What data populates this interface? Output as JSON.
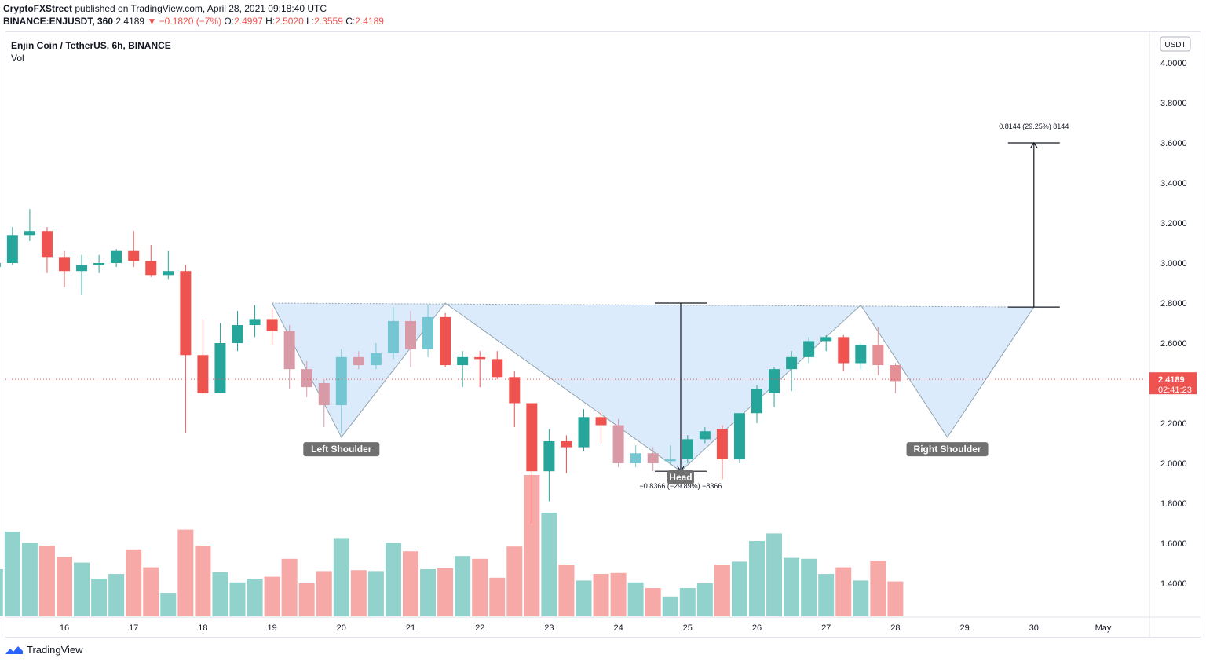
{
  "header": {
    "publisher": "CryptoFXStreet",
    "publisher_rest": " published on TradingView.com, April 28, 2021 09:18:40 UTC",
    "symbol": "BINANCE:ENJUSDT, 360",
    "last": "2.4189",
    "change": "−0.1820 (−7%)",
    "open_lbl": "O:",
    "open": "2.4997",
    "high_lbl": "H:",
    "high": "2.5020",
    "low_lbl": "L:",
    "low": "2.3559",
    "close_lbl": "C:",
    "close": "2.4189"
  },
  "legend": {
    "title": "Enjin Coin / TetherUS, 6h, BINANCE",
    "vol": "Vol"
  },
  "price_axis": {
    "unit": "USDT",
    "current_price": "2.4189",
    "countdown": "02:41:23"
  },
  "footer": {
    "brand": "TradingView"
  },
  "colors": {
    "up": "#26a69a",
    "down": "#ef5350",
    "pattern_fill": "#d6e8fb",
    "pattern_stroke": "#90a4ae"
  },
  "chart_data": {
    "type": "candlestick",
    "interval": "6h",
    "ylim": [
      1.2,
      4.07
    ],
    "y_ticks": [
      "4.0000",
      "3.8000",
      "3.6000",
      "3.4000",
      "3.2000",
      "3.0000",
      "2.8000",
      "2.6000",
      "2.4000",
      "2.2000",
      "2.0000",
      "1.8000",
      "1.6000",
      "1.4000"
    ],
    "x_ticks": [
      "16",
      "17",
      "18",
      "19",
      "20",
      "21",
      "22",
      "23",
      "24",
      "25",
      "26",
      "27",
      "28",
      "29",
      "30",
      "May"
    ],
    "x_tick_positions": [
      16,
      17,
      18,
      19,
      20,
      21,
      22,
      23,
      24,
      25,
      26,
      27,
      28,
      29,
      30,
      31
    ],
    "candles": [
      {
        "t": 15.0,
        "o": 2.98,
        "h": 3.04,
        "l": 2.92,
        "c": 3.0
      },
      {
        "t": 15.25,
        "o": 3.0,
        "h": 3.18,
        "l": 2.99,
        "c": 3.14
      },
      {
        "t": 15.5,
        "o": 3.14,
        "h": 3.27,
        "l": 3.11,
        "c": 3.16
      },
      {
        "t": 15.75,
        "o": 3.16,
        "h": 3.18,
        "l": 2.95,
        "c": 3.03
      },
      {
        "t": 16.0,
        "o": 3.03,
        "h": 3.06,
        "l": 2.88,
        "c": 2.96
      },
      {
        "t": 16.25,
        "o": 2.96,
        "h": 3.04,
        "l": 2.84,
        "c": 2.99
      },
      {
        "t": 16.5,
        "o": 2.99,
        "h": 3.04,
        "l": 2.95,
        "c": 3.0
      },
      {
        "t": 16.75,
        "o": 3.0,
        "h": 3.07,
        "l": 2.98,
        "c": 3.06
      },
      {
        "t": 17.0,
        "o": 3.06,
        "h": 3.16,
        "l": 2.98,
        "c": 3.01
      },
      {
        "t": 17.25,
        "o": 3.01,
        "h": 3.09,
        "l": 2.93,
        "c": 2.94
      },
      {
        "t": 17.5,
        "o": 2.94,
        "h": 3.06,
        "l": 2.92,
        "c": 2.96
      },
      {
        "t": 17.75,
        "o": 2.96,
        "h": 2.99,
        "l": 2.15,
        "c": 2.54
      },
      {
        "t": 18.0,
        "o": 2.54,
        "h": 2.72,
        "l": 2.34,
        "c": 2.35
      },
      {
        "t": 18.25,
        "o": 2.35,
        "h": 2.7,
        "l": 2.35,
        "c": 2.6
      },
      {
        "t": 18.5,
        "o": 2.6,
        "h": 2.76,
        "l": 2.56,
        "c": 2.69
      },
      {
        "t": 18.75,
        "o": 2.69,
        "h": 2.79,
        "l": 2.63,
        "c": 2.72
      },
      {
        "t": 19.0,
        "o": 2.72,
        "h": 2.77,
        "l": 2.59,
        "c": 2.66
      },
      {
        "t": 19.25,
        "o": 2.66,
        "h": 2.69,
        "l": 2.37,
        "c": 2.47
      },
      {
        "t": 19.5,
        "o": 2.47,
        "h": 2.51,
        "l": 2.33,
        "c": 2.38
      },
      {
        "t": 19.75,
        "o": 2.4,
        "h": 2.42,
        "l": 2.18,
        "c": 2.29
      },
      {
        "t": 20.0,
        "o": 2.29,
        "h": 2.57,
        "l": 2.15,
        "c": 2.53
      },
      {
        "t": 20.25,
        "o": 2.53,
        "h": 2.56,
        "l": 2.47,
        "c": 2.49
      },
      {
        "t": 20.5,
        "o": 2.49,
        "h": 2.6,
        "l": 2.47,
        "c": 2.55
      },
      {
        "t": 20.75,
        "o": 2.55,
        "h": 2.78,
        "l": 2.52,
        "c": 2.71
      },
      {
        "t": 21.0,
        "o": 2.71,
        "h": 2.76,
        "l": 2.48,
        "c": 2.57
      },
      {
        "t": 21.25,
        "o": 2.57,
        "h": 2.79,
        "l": 2.53,
        "c": 2.73
      },
      {
        "t": 21.5,
        "o": 2.73,
        "h": 2.75,
        "l": 2.48,
        "c": 2.49
      },
      {
        "t": 21.75,
        "o": 2.49,
        "h": 2.56,
        "l": 2.38,
        "c": 2.53
      },
      {
        "t": 22.0,
        "o": 2.53,
        "h": 2.56,
        "l": 2.38,
        "c": 2.52
      },
      {
        "t": 22.25,
        "o": 2.52,
        "h": 2.56,
        "l": 2.42,
        "c": 2.43
      },
      {
        "t": 22.5,
        "o": 2.43,
        "h": 2.46,
        "l": 2.18,
        "c": 2.3
      },
      {
        "t": 22.75,
        "o": 2.3,
        "h": 2.3,
        "l": 1.7,
        "c": 1.96
      },
      {
        "t": 23.0,
        "o": 1.96,
        "h": 2.17,
        "l": 1.81,
        "c": 2.11
      },
      {
        "t": 23.25,
        "o": 2.11,
        "h": 2.14,
        "l": 1.95,
        "c": 2.08
      },
      {
        "t": 23.5,
        "o": 2.08,
        "h": 2.27,
        "l": 2.06,
        "c": 2.23
      },
      {
        "t": 23.75,
        "o": 2.23,
        "h": 2.26,
        "l": 2.1,
        "c": 2.19
      },
      {
        "t": 24.0,
        "o": 2.19,
        "h": 2.22,
        "l": 1.98,
        "c": 2.0
      },
      {
        "t": 24.25,
        "o": 2.0,
        "h": 2.09,
        "l": 1.98,
        "c": 2.05
      },
      {
        "t": 24.5,
        "o": 2.05,
        "h": 2.08,
        "l": 1.96,
        "c": 2.0
      },
      {
        "t": 24.75,
        "o": 2.01,
        "h": 2.09,
        "l": 1.99,
        "c": 2.02
      },
      {
        "t": 25.0,
        "o": 2.02,
        "h": 2.14,
        "l": 2.0,
        "c": 2.12
      },
      {
        "t": 25.25,
        "o": 2.12,
        "h": 2.18,
        "l": 2.1,
        "c": 2.16
      },
      {
        "t": 25.5,
        "o": 2.17,
        "h": 2.19,
        "l": 1.92,
        "c": 2.02
      },
      {
        "t": 25.75,
        "o": 2.02,
        "h": 2.25,
        "l": 2.0,
        "c": 2.25
      },
      {
        "t": 26.0,
        "o": 2.25,
        "h": 2.39,
        "l": 2.2,
        "c": 2.37
      },
      {
        "t": 26.25,
        "o": 2.35,
        "h": 2.48,
        "l": 2.28,
        "c": 2.47
      },
      {
        "t": 26.5,
        "o": 2.47,
        "h": 2.56,
        "l": 2.36,
        "c": 2.53
      },
      {
        "t": 26.75,
        "o": 2.53,
        "h": 2.63,
        "l": 2.5,
        "c": 2.61
      },
      {
        "t": 27.0,
        "o": 2.61,
        "h": 2.64,
        "l": 2.56,
        "c": 2.63
      },
      {
        "t": 27.25,
        "o": 2.63,
        "h": 2.64,
        "l": 2.46,
        "c": 2.5
      },
      {
        "t": 27.5,
        "o": 2.5,
        "h": 2.6,
        "l": 2.47,
        "c": 2.59
      },
      {
        "t": 27.75,
        "o": 2.59,
        "h": 2.68,
        "l": 2.44,
        "c": 2.49
      },
      {
        "t": 28.0,
        "o": 2.49,
        "h": 2.5,
        "l": 2.35,
        "c": 2.41
      }
    ],
    "volume": [
      {
        "t": 15.0,
        "v": 0.5,
        "up": true
      },
      {
        "t": 15.25,
        "v": 0.9,
        "up": true
      },
      {
        "t": 15.5,
        "v": 0.78,
        "up": true
      },
      {
        "t": 15.75,
        "v": 0.75,
        "up": false
      },
      {
        "t": 16.0,
        "v": 0.63,
        "up": false
      },
      {
        "t": 16.25,
        "v": 0.57,
        "up": true
      },
      {
        "t": 16.5,
        "v": 0.4,
        "up": true
      },
      {
        "t": 16.75,
        "v": 0.45,
        "up": true
      },
      {
        "t": 17.0,
        "v": 0.71,
        "up": false
      },
      {
        "t": 17.25,
        "v": 0.52,
        "up": false
      },
      {
        "t": 17.5,
        "v": 0.25,
        "up": true
      },
      {
        "t": 17.75,
        "v": 0.92,
        "up": false
      },
      {
        "t": 18.0,
        "v": 0.75,
        "up": false
      },
      {
        "t": 18.25,
        "v": 0.47,
        "up": true
      },
      {
        "t": 18.5,
        "v": 0.36,
        "up": true
      },
      {
        "t": 18.75,
        "v": 0.4,
        "up": true
      },
      {
        "t": 19.0,
        "v": 0.42,
        "up": false
      },
      {
        "t": 19.25,
        "v": 0.61,
        "up": false
      },
      {
        "t": 19.5,
        "v": 0.35,
        "up": false
      },
      {
        "t": 19.75,
        "v": 0.48,
        "up": false
      },
      {
        "t": 20.0,
        "v": 0.83,
        "up": true
      },
      {
        "t": 20.25,
        "v": 0.49,
        "up": false
      },
      {
        "t": 20.5,
        "v": 0.48,
        "up": true
      },
      {
        "t": 20.75,
        "v": 0.78,
        "up": true
      },
      {
        "t": 21.0,
        "v": 0.69,
        "up": false
      },
      {
        "t": 21.25,
        "v": 0.5,
        "up": true
      },
      {
        "t": 21.5,
        "v": 0.51,
        "up": false
      },
      {
        "t": 21.75,
        "v": 0.64,
        "up": true
      },
      {
        "t": 22.0,
        "v": 0.61,
        "up": false
      },
      {
        "t": 22.25,
        "v": 0.41,
        "up": false
      },
      {
        "t": 22.5,
        "v": 0.74,
        "up": false
      },
      {
        "t": 22.75,
        "v": 1.5,
        "up": false
      },
      {
        "t": 23.0,
        "v": 1.1,
        "up": true
      },
      {
        "t": 23.25,
        "v": 0.55,
        "up": false
      },
      {
        "t": 23.5,
        "v": 0.38,
        "up": true
      },
      {
        "t": 23.75,
        "v": 0.45,
        "up": false
      },
      {
        "t": 24.0,
        "v": 0.46,
        "up": false
      },
      {
        "t": 24.25,
        "v": 0.36,
        "up": true
      },
      {
        "t": 24.5,
        "v": 0.3,
        "up": false
      },
      {
        "t": 24.75,
        "v": 0.21,
        "up": true
      },
      {
        "t": 25.0,
        "v": 0.3,
        "up": true
      },
      {
        "t": 25.25,
        "v": 0.35,
        "up": true
      },
      {
        "t": 25.5,
        "v": 0.55,
        "up": false
      },
      {
        "t": 25.75,
        "v": 0.58,
        "up": true
      },
      {
        "t": 26.0,
        "v": 0.8,
        "up": true
      },
      {
        "t": 26.25,
        "v": 0.88,
        "up": true
      },
      {
        "t": 26.5,
        "v": 0.62,
        "up": true
      },
      {
        "t": 26.75,
        "v": 0.61,
        "up": true
      },
      {
        "t": 27.0,
        "v": 0.45,
        "up": true
      },
      {
        "t": 27.25,
        "v": 0.52,
        "up": false
      },
      {
        "t": 27.5,
        "v": 0.38,
        "up": true
      },
      {
        "t": 27.75,
        "v": 0.59,
        "up": false
      },
      {
        "t": 28.0,
        "v": 0.37,
        "up": false
      }
    ],
    "pattern": {
      "name": "inverse head and shoulders",
      "points": [
        {
          "t": 19.0,
          "p": 2.8
        },
        {
          "t": 20.0,
          "p": 2.13
        },
        {
          "t": 21.5,
          "p": 2.8
        },
        {
          "t": 24.9,
          "p": 1.96
        },
        {
          "t": 27.5,
          "p": 2.79
        },
        {
          "t": 28.75,
          "p": 2.13
        },
        {
          "t": 30.0,
          "p": 2.78
        }
      ],
      "labels": [
        {
          "text": "Left Shoulder",
          "t": 20.0,
          "p": 2.07
        },
        {
          "text": "Head",
          "t": 24.9,
          "p": 1.93
        },
        {
          "text": "Right Shoulder",
          "t": 28.75,
          "p": 2.07
        }
      ]
    },
    "measures": [
      {
        "t": 24.9,
        "from": 2.8,
        "to": 1.96,
        "label": "−0.8366 (−29.89%) −8366"
      },
      {
        "t": 30.0,
        "from": 2.78,
        "to": 3.6,
        "label": "0.8144 (29.25%) 8144"
      }
    ]
  }
}
